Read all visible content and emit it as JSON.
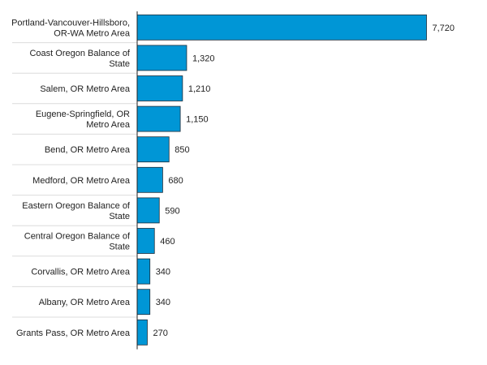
{
  "chart_data": {
    "type": "bar",
    "orientation": "horizontal",
    "title": "",
    "xlabel": "",
    "ylabel": "",
    "bar_color": "#0096d6",
    "grid": false,
    "legend": "none",
    "xlim": [
      0,
      8000
    ],
    "categories": [
      [
        "Portland-Vancouver-Hillsboro,",
        "OR-WA Metro Area"
      ],
      [
        "Coast Oregon Balance of",
        "State"
      ],
      [
        "Salem, OR Metro Area"
      ],
      [
        "Eugene-Springfield, OR",
        "Metro Area"
      ],
      [
        "Bend, OR Metro Area"
      ],
      [
        "Medford, OR Metro Area"
      ],
      [
        "Eastern Oregon Balance of",
        "State"
      ],
      [
        "Central Oregon Balance of",
        "State"
      ],
      [
        "Corvallis, OR Metro Area"
      ],
      [
        "Albany, OR Metro Area"
      ],
      [
        "Grants Pass, OR Metro Area"
      ]
    ],
    "values": [
      7720,
      1320,
      1210,
      1150,
      850,
      680,
      590,
      460,
      340,
      340,
      270
    ],
    "value_labels": [
      "7,720",
      "1,320",
      "1,210",
      "1,150",
      "850",
      "680",
      "590",
      "460",
      "340",
      "340",
      "270"
    ]
  }
}
